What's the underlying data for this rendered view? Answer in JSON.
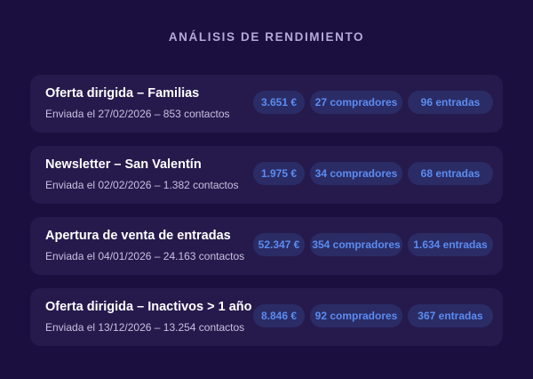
{
  "header": {
    "title": "ANÁLISIS DE RENDIMIENTO"
  },
  "colors": {
    "background": "#1b0f3f",
    "card": "#261a4d",
    "pill": "#2b2c66",
    "accent": "#5b8cf0"
  },
  "campaigns": [
    {
      "name": "Oferta dirigida – Familias",
      "meta": "Enviada el 27/02/2026 – 853 contactos",
      "revenue": "3.651 €",
      "buyers": "27 compradores",
      "entries": "96 entradas"
    },
    {
      "name": "Newsletter – San Valentín",
      "meta": "Enviada el 02/02/2026 – 1.382 contactos",
      "revenue": "1.975 €",
      "buyers": "34 compradores",
      "entries": "68 entradas"
    },
    {
      "name": "Apertura de venta de entradas",
      "meta": "Enviada el 04/01/2026 – 24.163 contactos",
      "revenue": "52.347 €",
      "buyers": "354 compradores",
      "entries": "1.634 entradas"
    },
    {
      "name": "Oferta dirigida – Inactivos > 1 año",
      "meta": "Enviada el 13/12/2026 – 13.254 contactos",
      "revenue": "8.846 €",
      "buyers": "92 compradores",
      "entries": "367 entradas"
    }
  ]
}
